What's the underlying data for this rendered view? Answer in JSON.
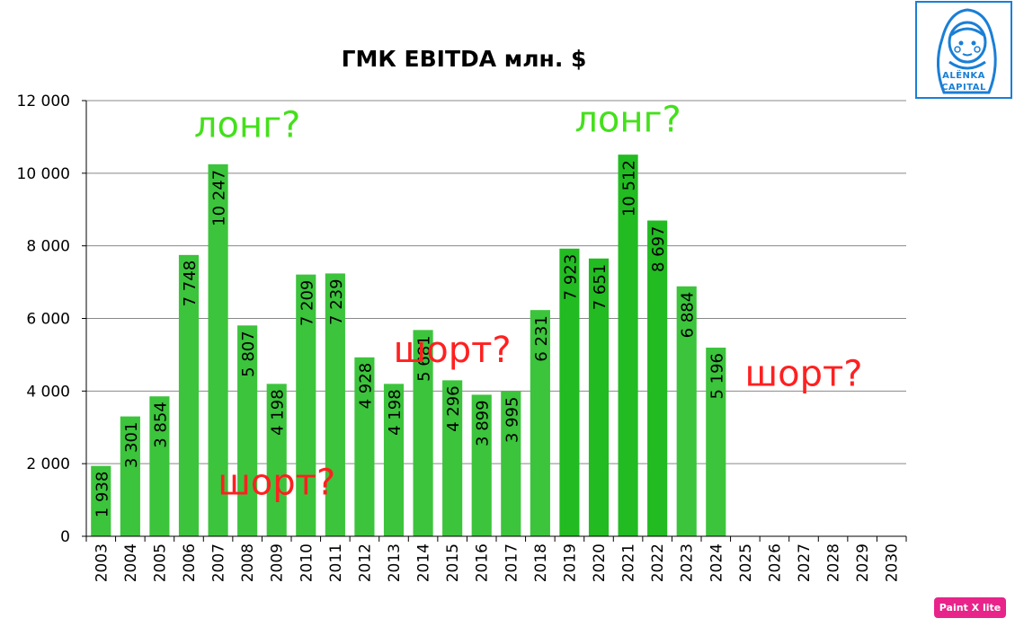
{
  "chart_data": {
    "type": "bar",
    "title": "ГМК EBITDA млн. $",
    "xlabel": "",
    "ylabel": "",
    "ylim": [
      0,
      12000
    ],
    "yticks": [
      "0",
      "2 000",
      "4 000",
      "6 000",
      "8 000",
      "10 000",
      "12 000"
    ],
    "ytick_values": [
      0,
      2000,
      4000,
      6000,
      8000,
      10000,
      12000
    ],
    "grid": true,
    "legend": "none",
    "categories": [
      "2003",
      "2004",
      "2005",
      "2006",
      "2007",
      "2008",
      "2009",
      "2010",
      "2011",
      "2012",
      "2013",
      "2014",
      "2015",
      "2016",
      "2017",
      "2018",
      "2019",
      "2020",
      "2021",
      "2022",
      "2023",
      "2024",
      "2025",
      "2026",
      "2027",
      "2028",
      "2029",
      "2030"
    ],
    "values": [
      1938,
      3301,
      3854,
      7748,
      10247,
      5807,
      4198,
      7209,
      7239,
      4928,
      4198,
      5681,
      4296,
      3899,
      3995,
      6231,
      7923,
      7651,
      10512,
      8697,
      6884,
      5196,
      null,
      null,
      null,
      null,
      null,
      null
    ],
    "data_labels": [
      "1 938",
      "3 301",
      "3 854",
      "7 748",
      "10 247",
      "5 807",
      "4 198",
      "7 209",
      "7 239",
      "4 928",
      "4 198",
      "5 681",
      "4 296",
      "3 899",
      "3 995",
      "6 231",
      "7 923",
      "7 651",
      "10 512",
      "8 697",
      "6 884",
      "5 196",
      "",
      "",
      "",
      "",
      "",
      ""
    ],
    "colors": {
      "bar": "#3cc43c",
      "bar_dark": "#22bb22",
      "grid": "#888888",
      "axis": "#000000"
    },
    "annotations": [
      {
        "text": "лонг?",
        "category": "2008",
        "y": 11000,
        "color": "#44e01b"
      },
      {
        "text": "лонг?",
        "category": "2021",
        "y": 11150,
        "color": "#44e01b"
      },
      {
        "text": "шорт?",
        "category": "2015",
        "y": 4800,
        "color": "#ff2020"
      },
      {
        "text": "шорт?",
        "category": "2009",
        "y": 1150,
        "color": "#ff2020"
      },
      {
        "text": "шорт?",
        "category": "2027",
        "y": 4150,
        "color": "#ff2020"
      }
    ]
  },
  "logo": {
    "line1": "ALЁNKA",
    "line2": "CAPITAL",
    "icon": "matryoshka-icon",
    "color": "#1a7fd6"
  },
  "watermark": {
    "text": "Paint X lite",
    "color": "#e8238a"
  }
}
